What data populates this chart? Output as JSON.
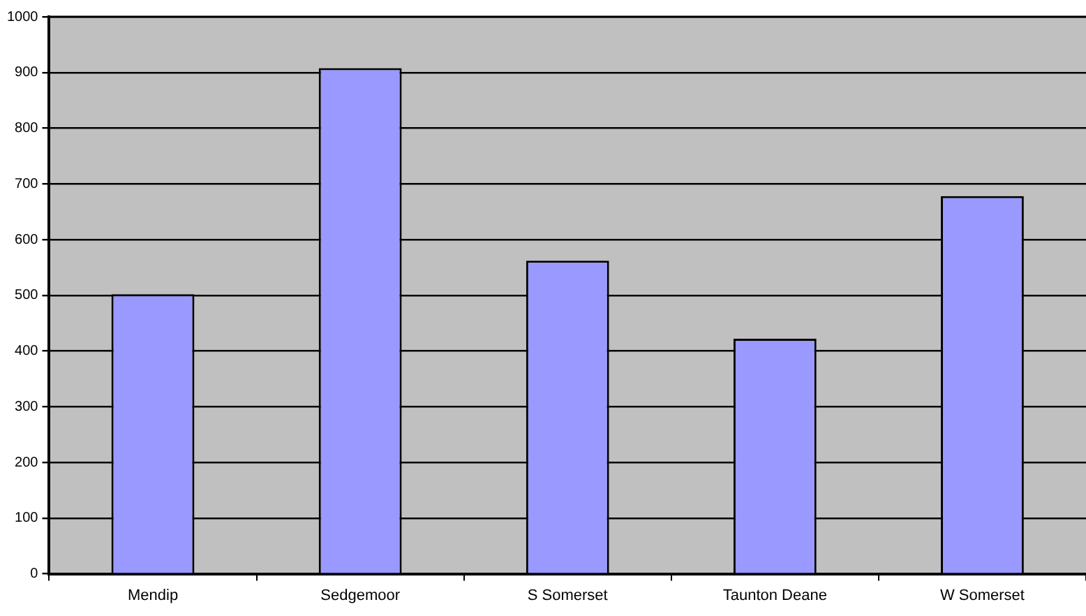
{
  "chart_data": {
    "type": "bar",
    "categories": [
      "Mendip",
      "Sedgemoor",
      "S Somerset",
      "Taunton Deane",
      "W Somerset"
    ],
    "values": [
      502,
      908,
      562,
      422,
      678
    ],
    "color": "#9999ff",
    "ylim": [
      0,
      1000
    ],
    "yticks": [
      0,
      100,
      200,
      300,
      400,
      500,
      600,
      700,
      800,
      900,
      1000
    ],
    "grid": "y",
    "legend": false
  }
}
